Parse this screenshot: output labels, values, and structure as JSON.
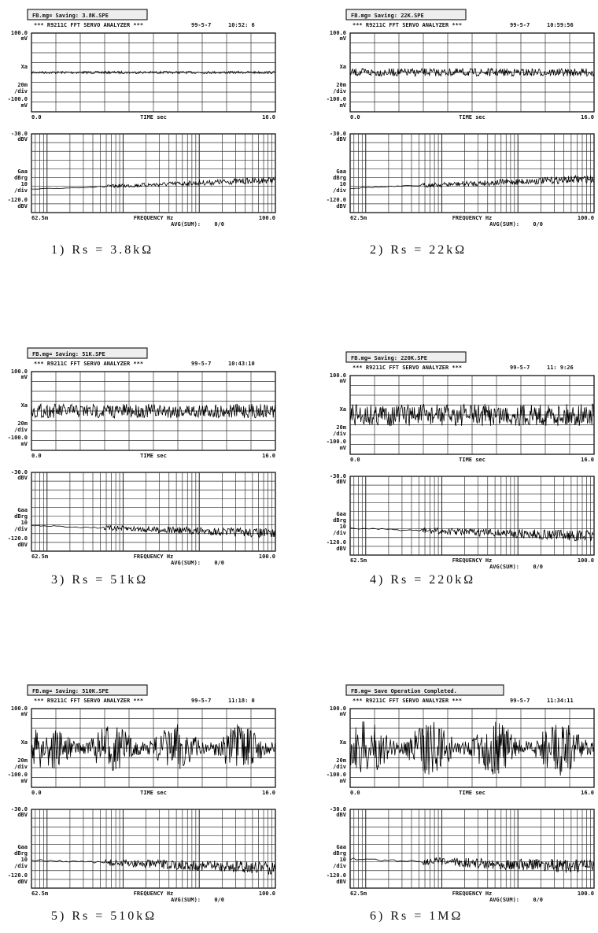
{
  "axis_labels": {
    "upper_top": "100.0",
    "upper_top_unit": "mV",
    "upper_name": "Xa",
    "upper_scale": "20m",
    "upper_div": "/div",
    "upper_bottom": "-100.0",
    "upper_bottom_unit": "mV",
    "time_start": "0.0",
    "time_label": "TIME sec",
    "time_end": "16.0",
    "lower_top": "-30.0",
    "lower_top_unit": "dBV",
    "lower_name": "Gaa",
    "lower_unit": "dBrg",
    "lower_scale": "10",
    "lower_div": "/div",
    "lower_bottom": "-120.0",
    "lower_bottom_unit": "dBV",
    "freq_start": "62.5m",
    "freq_label": "FREQUENCY Hz",
    "freq_end": "100.0",
    "avg_label": "AVG(SUM):",
    "avg_value": "0/0"
  },
  "analyzer": "*** R9211C FFT SERVO ANALYZER ***",
  "panels": [
    {
      "status": "FB.mg= Saving: 3.8K.SPE",
      "date": "99-5-7",
      "time": "10:52: 6",
      "caption": "1)  Rs = 3.8kΩ"
    },
    {
      "status": "FB.mg= Saving: 22K.SPE",
      "date": "99-5-7",
      "time": "10:59:56",
      "caption": "2)  Rs = 22kΩ"
    },
    {
      "status": "FB.mg= Saving: 51K.SPE",
      "date": "99-5-7",
      "time": "10:43:10",
      "caption": "3)  Rs = 51kΩ"
    },
    {
      "status": "FB.mg= Saving: 220K.SPE",
      "date": "99-5-7",
      "time": "11: 9:26",
      "caption": "4)  Rs = 220kΩ"
    },
    {
      "status": "FB.mg= Saving: 510K.SPE",
      "date": "99-5-7",
      "time": "11:18: 0",
      "caption": "5)  Rs = 510kΩ"
    },
    {
      "status": "FB.mg= Save Operation Completed.",
      "date": "99-5-7",
      "time": "11:34:11",
      "caption": "6)  Rs = 1MΩ"
    }
  ]
}
